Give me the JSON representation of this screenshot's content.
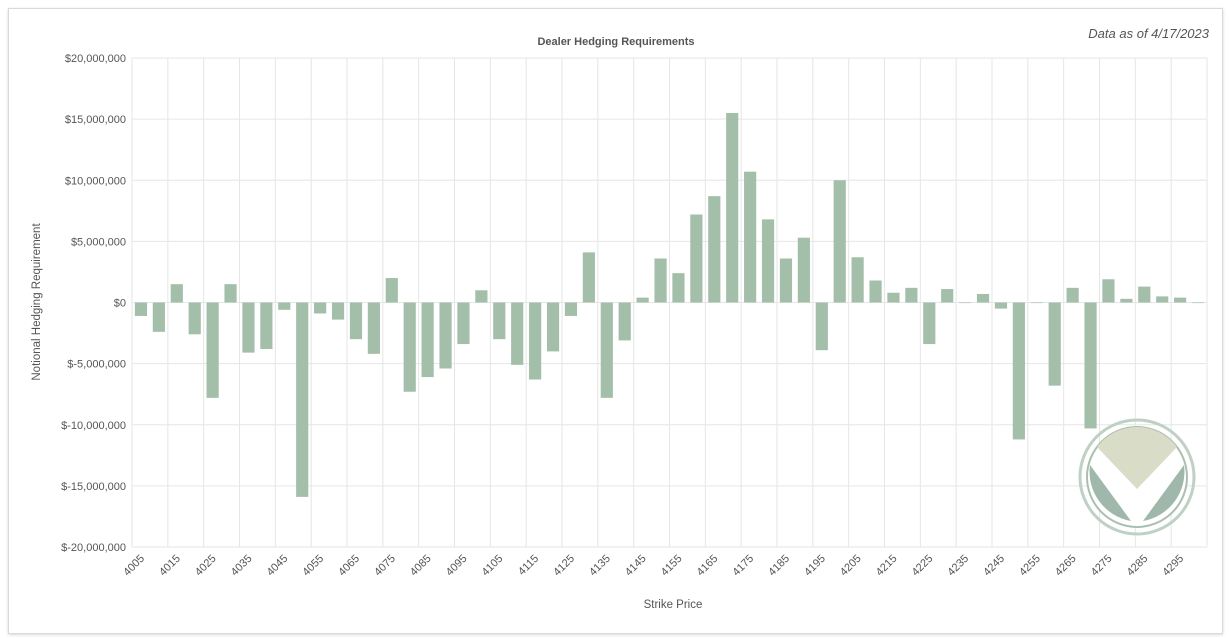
{
  "as_of": "Data as of 4/17/2023",
  "colors": {
    "bar": "#a3bfaa",
    "grid": "#e6e6e6",
    "text": "#555555"
  },
  "logo": {
    "name": "circle-v-logo"
  },
  "chart_data": {
    "type": "bar",
    "title": "Dealer Hedging Requirements",
    "xlabel": "Strike Price",
    "ylabel": "Notional Hedging Requirement",
    "ylim": [
      -20000000,
      20000000
    ],
    "yticks": [
      20000000,
      15000000,
      10000000,
      5000000,
      0,
      -5000000,
      -10000000,
      -15000000,
      -20000000
    ],
    "ytick_labels": [
      "$20,000,000",
      "$15,000,000",
      "$10,000,000",
      "$5,000,000",
      "$0",
      "$-5,000,000",
      "$-10,000,000",
      "$-15,000,000",
      "$-20,000,000"
    ],
    "grid": true,
    "tick_every": 2,
    "categories": [
      "4005",
      "4010",
      "4015",
      "4020",
      "4025",
      "4030",
      "4035",
      "4040",
      "4045",
      "4050",
      "4055",
      "4060",
      "4065",
      "4070",
      "4075",
      "4080",
      "4085",
      "4090",
      "4095",
      "4100",
      "4105",
      "4110",
      "4115",
      "4120",
      "4125",
      "4130",
      "4135",
      "4140",
      "4145",
      "4150",
      "4155",
      "4160",
      "4165",
      "4170",
      "4175",
      "4180",
      "4185",
      "4190",
      "4195",
      "4200",
      "4205",
      "4210",
      "4215",
      "4220",
      "4225",
      "4230",
      "4235",
      "4240",
      "4245",
      "4250",
      "4255",
      "4260",
      "4265",
      "4270",
      "4275",
      "4280",
      "4285",
      "4290",
      "4295",
      "4300"
    ],
    "values": [
      -1100000,
      -2400000,
      1500000,
      -2600000,
      -7800000,
      1500000,
      -4100000,
      -3800000,
      -600000,
      -15900000,
      -900000,
      -1400000,
      -3000000,
      -4200000,
      2000000,
      -7300000,
      -6100000,
      -5400000,
      -3400000,
      1000000,
      -3000000,
      -5100000,
      -6300000,
      -4000000,
      -1100000,
      4100000,
      -7800000,
      -3100000,
      400000,
      3600000,
      2400000,
      7200000,
      8700000,
      15500000,
      10700000,
      6800000,
      3600000,
      5300000,
      -3900000,
      10000000,
      3700000,
      1800000,
      800000,
      1200000,
      -3400000,
      1100000,
      0,
      700000,
      -500000,
      -11200000,
      0,
      -6800000,
      1200000,
      -10300000,
      1900000,
      300000,
      1300000,
      500000,
      400000,
      0
    ]
  }
}
